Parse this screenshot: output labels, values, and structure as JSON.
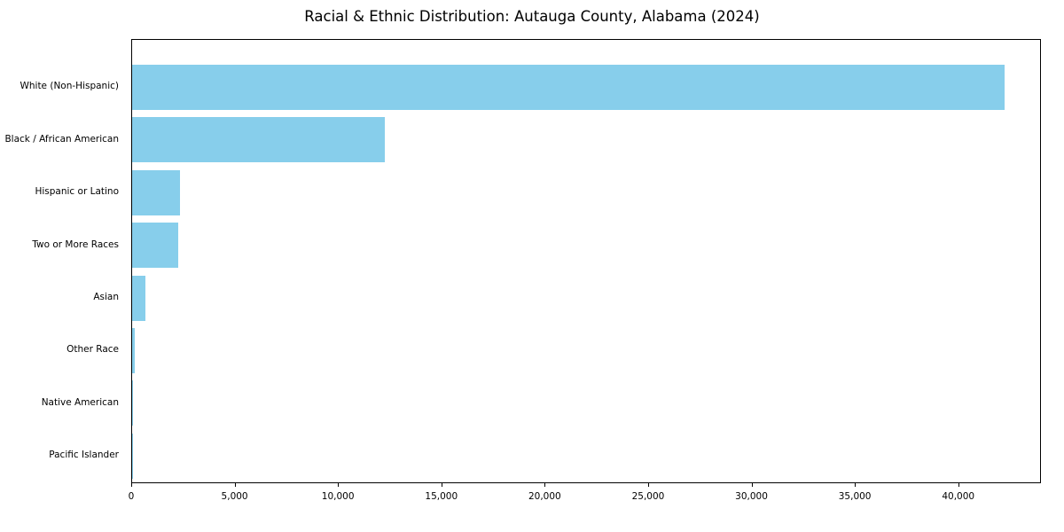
{
  "chart_data": {
    "type": "bar",
    "orientation": "horizontal",
    "title": "Racial & Ethnic Distribution: Autauga County, Alabama (2024)",
    "categories": [
      "White (Non-Hispanic)",
      "Black / African American",
      "Hispanic or Latino",
      "Two or More Races",
      "Asian",
      "Other Race",
      "Native American",
      "Pacific Islander"
    ],
    "values": [
      42300,
      12250,
      2300,
      2250,
      650,
      120,
      40,
      10
    ],
    "xlabel": "",
    "ylabel": "",
    "xlim": [
      0,
      44000
    ],
    "xticks": [
      0,
      5000,
      10000,
      15000,
      20000,
      25000,
      30000,
      35000,
      40000
    ],
    "xtick_labels": [
      "0",
      "5,000",
      "10,000",
      "15,000",
      "20,000",
      "25,000",
      "30,000",
      "35,000",
      "40,000"
    ],
    "bar_color": "#87CEEB",
    "grid": false,
    "legend": null,
    "background_color": "#ffffff",
    "frame_color": "#000000"
  }
}
